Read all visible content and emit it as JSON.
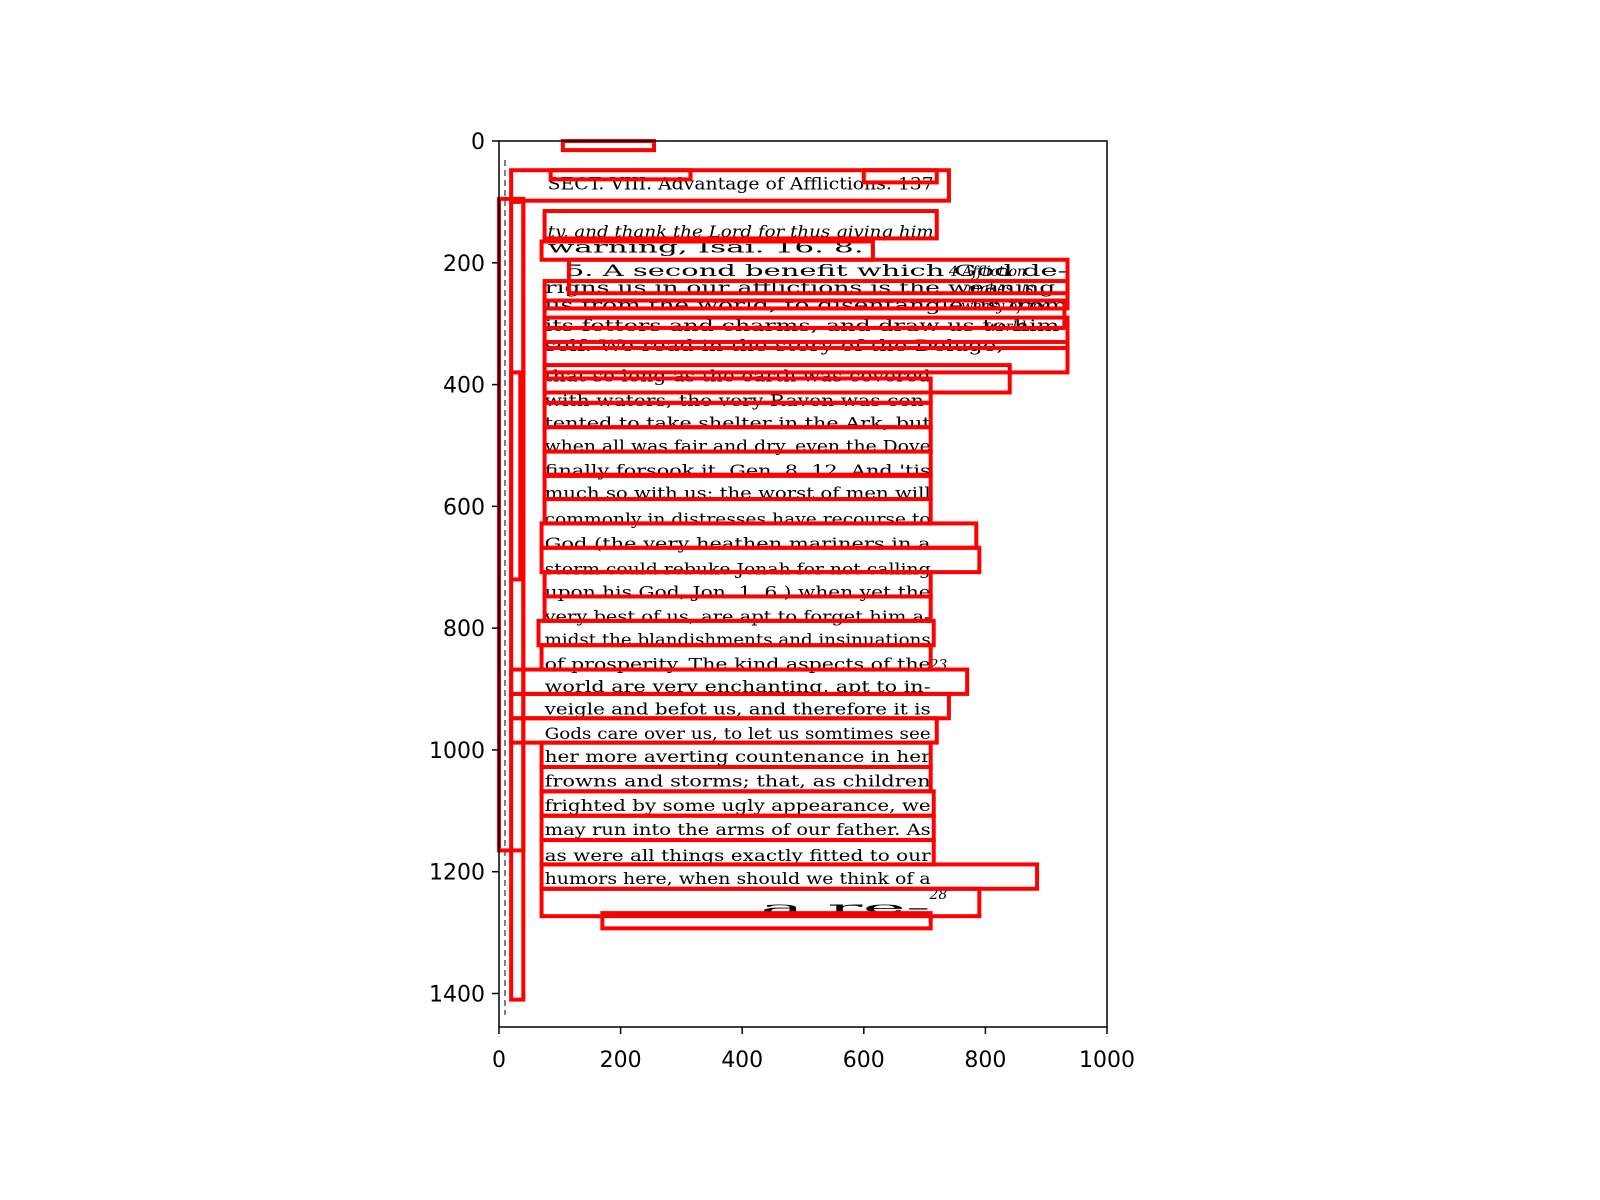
{
  "page": {
    "header": "SECT. VIII. Advantage of Afflictions. 137",
    "lines": [
      "ty, and thank the Lord for thus giving him",
      "warning, Isai. 16. 8.",
      "5. A second benefit which God de-",
      "rigns us in our afflictions is the weaning",
      "us from the world, to disentangle us from",
      "its fetters and charms, and draw us to him-",
      "self. We read in the story of the Deluge,",
      "that so long as the earth was covered",
      "with waters, the very Raven was con-",
      "tented to take shelter in the Ark, but",
      "when all was fair and dry, even the Dove",
      "finally forsook it, Gen. 8. 12. And 'tis",
      "much so with us: the worst of men will",
      "commonly in distresses have recourse to",
      "God (the very heathen mariners in a",
      "storm could rebuke Jonah for not calling",
      "upon his God, Jon. 1. 6.) when yet the",
      "very best of us, are apt to forget him a-",
      "midst the blandishments and insinuations",
      "of prosperity. The kind aspects of the",
      "world are very enchanting, apt to in-",
      "veigle and befot us, and therefore it is",
      "Gods care over us, to let us somtimes see",
      "her more averting countenance in her",
      "frowns and storms; that, as children",
      "frighted by some ugly appearance, we",
      "may run into the arms of our father. As",
      "as were all things exactly fitted to our",
      "humors here, when should we think of a",
      "a re-"
    ],
    "margin_notes": [
      "4 Affliction",
      "makes us",
      "weary of the",
      "world.",
      "23",
      "28"
    ]
  },
  "axes": {
    "x_ticks": [
      "0",
      "200",
      "400",
      "600",
      "800",
      "1000"
    ],
    "y_ticks": [
      "0",
      "200",
      "400",
      "600",
      "800",
      "1000",
      "1200",
      "1400"
    ]
  },
  "colors": {
    "box": "#ff0000",
    "ink": "#000000",
    "frame": "#000000",
    "background": "#ffffff"
  }
}
